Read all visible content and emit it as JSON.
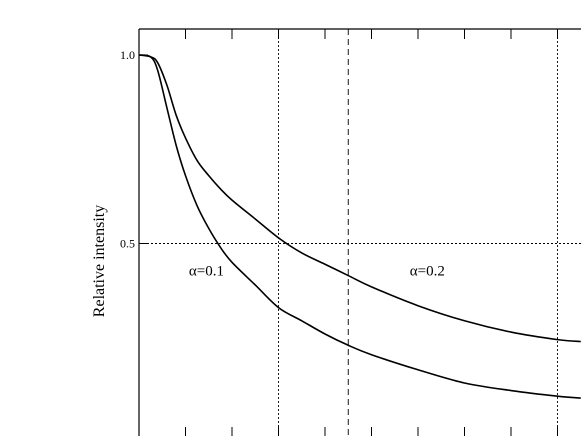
{
  "chart_data": {
    "type": "line",
    "title": "",
    "xlabel": "",
    "ylabel": "Relative intensity",
    "xlim": [
      0,
      10
    ],
    "ylim": [
      0,
      1.05
    ],
    "grid": false,
    "y_ticks": [
      {
        "value": 1.0,
        "label": "1.0"
      },
      {
        "value": 0.5,
        "label": "0.5"
      }
    ],
    "x_tick_count": 11,
    "reference_lines": {
      "horizontal": [
        {
          "y": 0.5,
          "style": "dotted"
        }
      ],
      "vertical": [
        {
          "x": 3.0,
          "style": "dotted"
        },
        {
          "x": 4.5,
          "style": "dashed"
        },
        {
          "x": 9.0,
          "style": "dotted"
        }
      ]
    },
    "series": [
      {
        "name": "α=0.1",
        "x": [
          0,
          0.25,
          0.4,
          0.6,
          0.8,
          1.0,
          1.25,
          1.5,
          1.75,
          2.0,
          2.5,
          3.0,
          3.5,
          4.0,
          4.5,
          5.0,
          6.0,
          7.0,
          8.0,
          9.0,
          9.5
        ],
        "y": [
          1.0,
          0.995,
          0.96,
          0.86,
          0.76,
          0.68,
          0.6,
          0.54,
          0.49,
          0.45,
          0.39,
          0.33,
          0.295,
          0.26,
          0.23,
          0.205,
          0.165,
          0.13,
          0.11,
          0.095,
          0.09
        ]
      },
      {
        "name": "α=0.2",
        "x": [
          0,
          0.25,
          0.4,
          0.6,
          0.8,
          1.0,
          1.25,
          1.5,
          1.75,
          2.0,
          2.5,
          3.0,
          3.5,
          4.0,
          4.5,
          5.0,
          6.0,
          7.0,
          8.0,
          9.0,
          9.5
        ],
        "y": [
          1.0,
          0.995,
          0.98,
          0.92,
          0.84,
          0.78,
          0.72,
          0.68,
          0.645,
          0.615,
          0.565,
          0.515,
          0.475,
          0.445,
          0.415,
          0.385,
          0.335,
          0.295,
          0.265,
          0.245,
          0.24
        ]
      }
    ],
    "annotations": [
      {
        "text": "α=0.1",
        "x": 1.45,
        "y": 0.415
      },
      {
        "text": "α=0.2",
        "x": 6.2,
        "y": 0.415
      }
    ]
  }
}
